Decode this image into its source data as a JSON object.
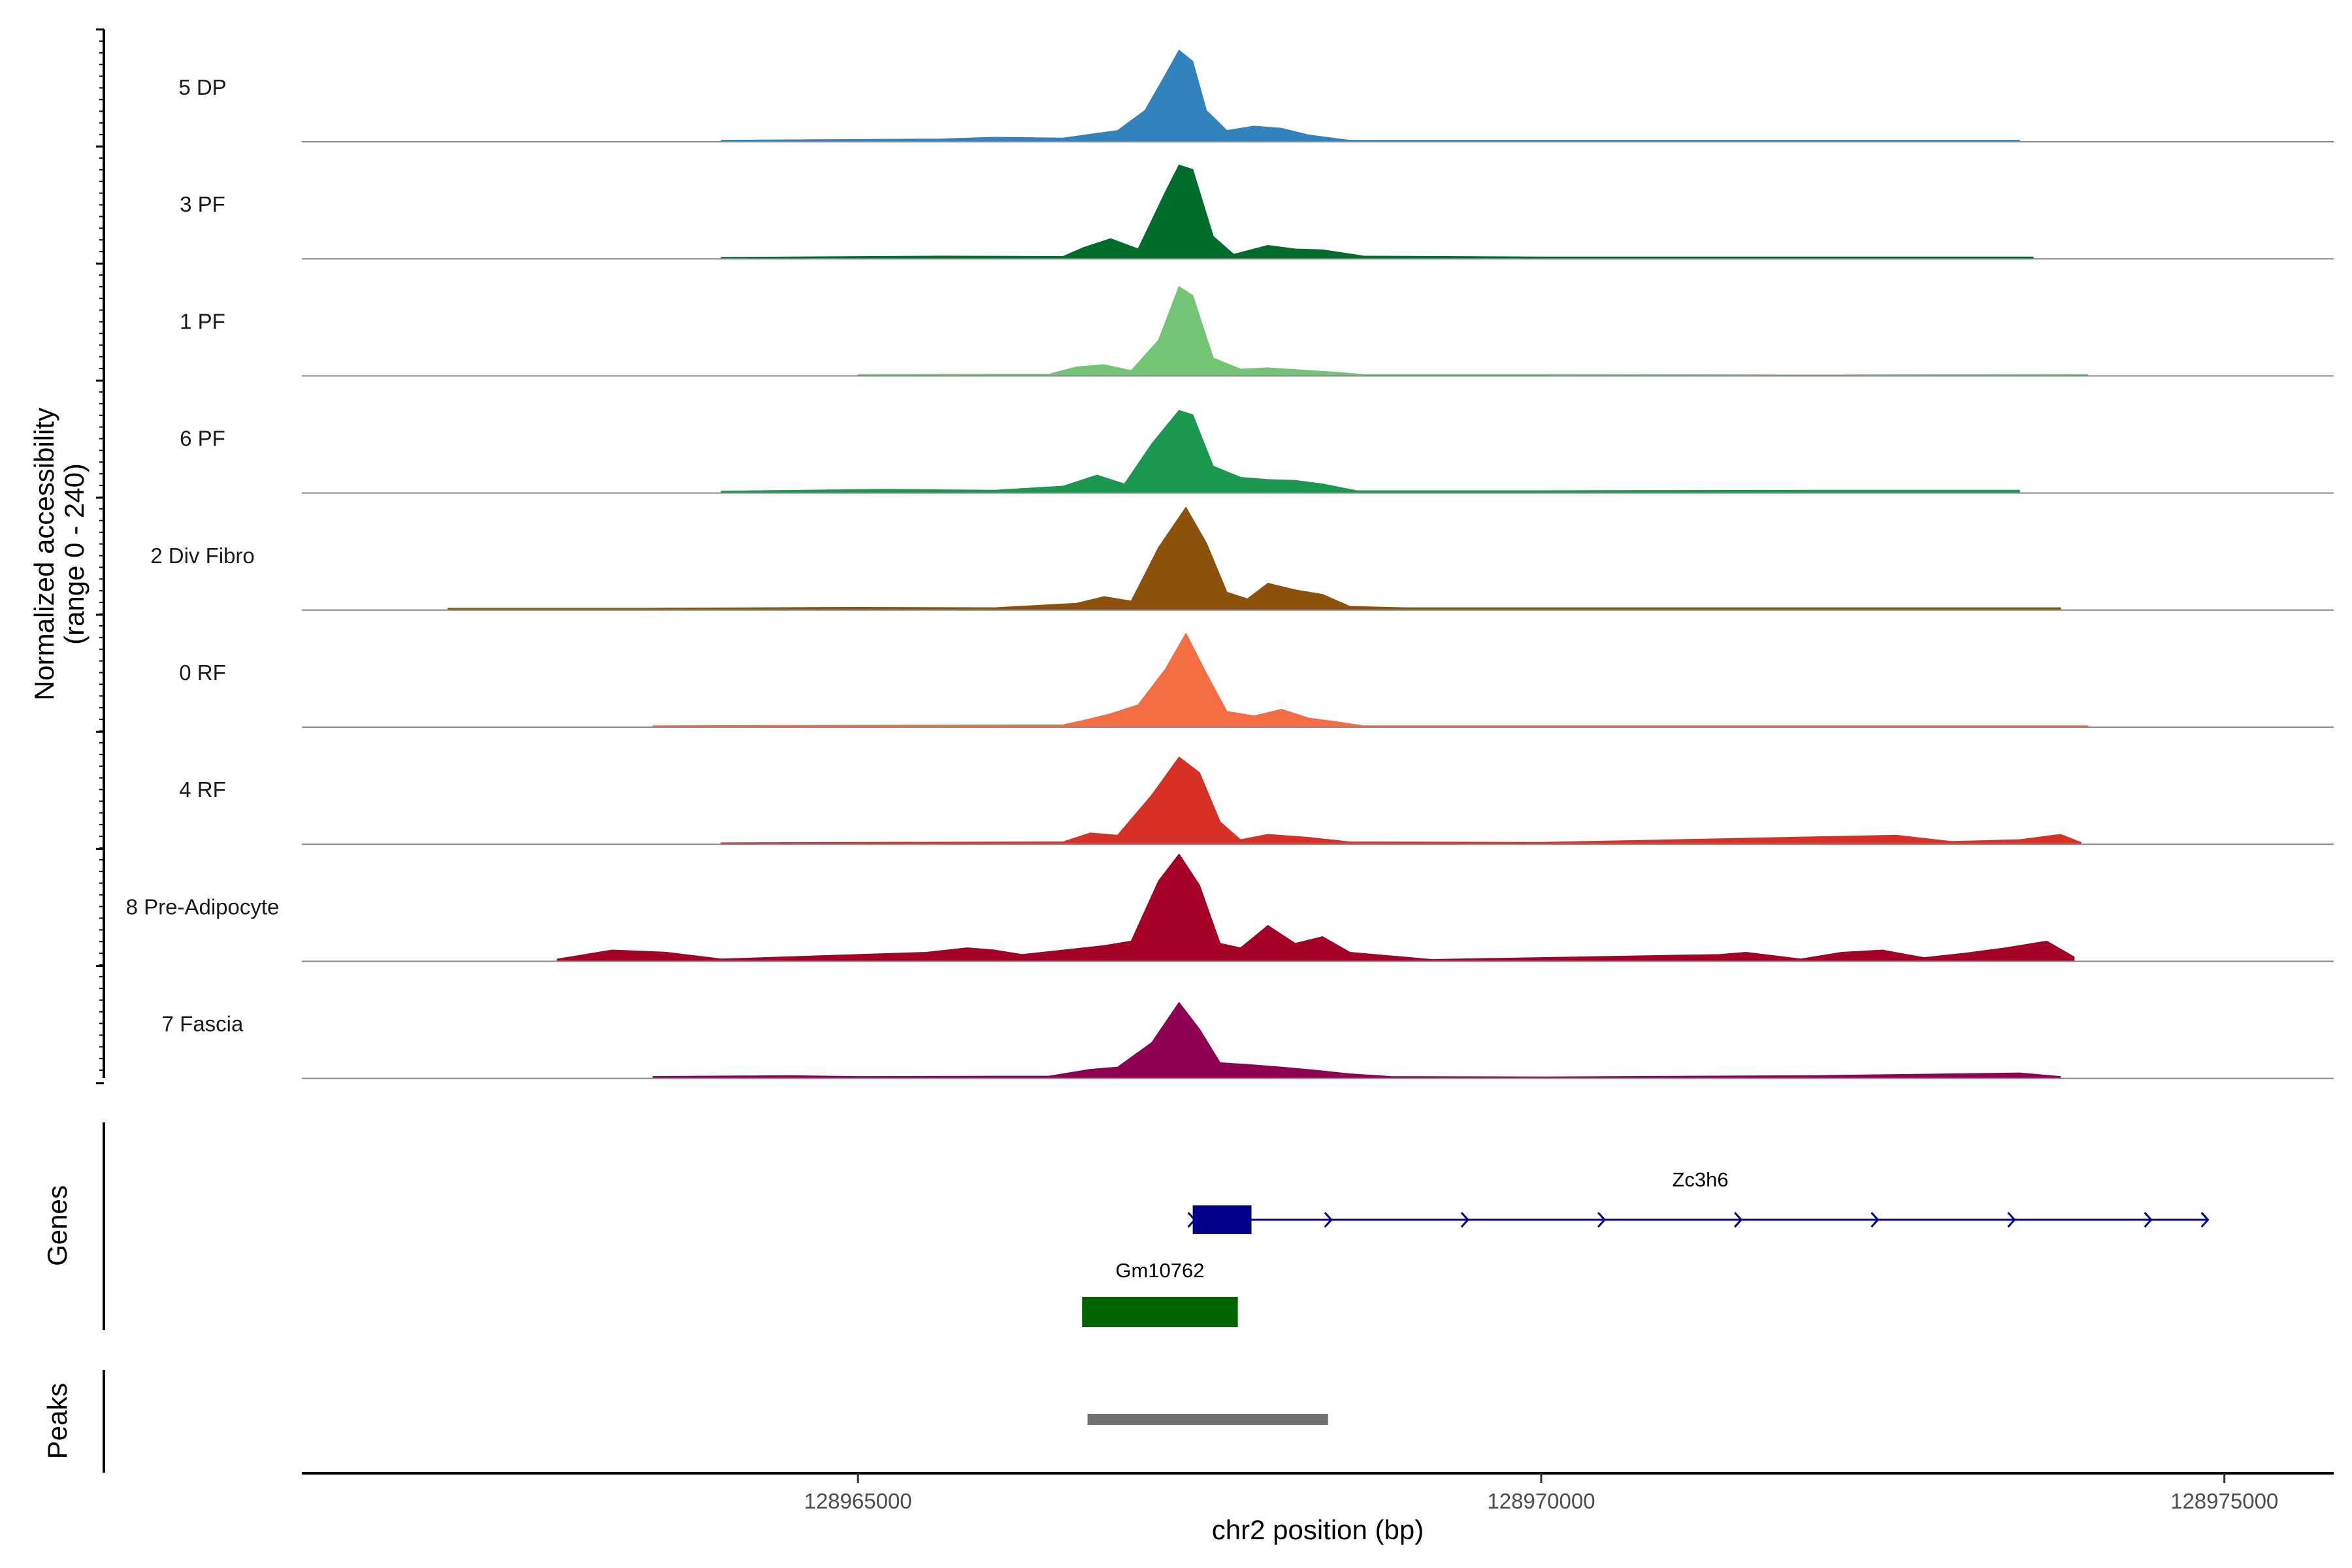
{
  "chart_data": {
    "type": "area",
    "title": "",
    "ylabel": "Normalized accessibility",
    "ylabel_range": "(range 0 - 240)",
    "xlabel": "chr2 position (bp)",
    "xlim": [
      128960930,
      128975800
    ],
    "ylim": [
      0,
      240
    ],
    "x_ticks": [
      {
        "value": 128965000,
        "label": "128965000"
      },
      {
        "value": 128970000,
        "label": "128970000"
      },
      {
        "value": 128975000,
        "label": "128975000"
      }
    ],
    "tracks": [
      {
        "name": "5 DP",
        "color": "#3182BD",
        "signal": [
          [
            128964000,
            3
          ],
          [
            128965000,
            5
          ],
          [
            128965600,
            6
          ],
          [
            128966000,
            10
          ],
          [
            128966500,
            8
          ],
          [
            128966900,
            25
          ],
          [
            128967100,
            70
          ],
          [
            128967250,
            150
          ],
          [
            128967350,
            205
          ],
          [
            128967450,
            180
          ],
          [
            128967550,
            70
          ],
          [
            128967700,
            25
          ],
          [
            128967900,
            35
          ],
          [
            128968100,
            30
          ],
          [
            128968300,
            15
          ],
          [
            128968600,
            3
          ],
          [
            128970000,
            3
          ],
          [
            128972000,
            3
          ],
          [
            128973500,
            3
          ]
        ]
      },
      {
        "name": "3 PF",
        "color": "#006D2C",
        "signal": [
          [
            128964000,
            3
          ],
          [
            128965600,
            6
          ],
          [
            128966500,
            5
          ],
          [
            128966650,
            25
          ],
          [
            128966850,
            45
          ],
          [
            128967050,
            22
          ],
          [
            128967250,
            150
          ],
          [
            128967350,
            210
          ],
          [
            128967450,
            200
          ],
          [
            128967600,
            50
          ],
          [
            128967750,
            10
          ],
          [
            128968000,
            30
          ],
          [
            128968200,
            22
          ],
          [
            128968400,
            20
          ],
          [
            128968700,
            6
          ],
          [
            128970000,
            4
          ],
          [
            128972000,
            4
          ],
          [
            128973600,
            4
          ]
        ]
      },
      {
        "name": "1 PF",
        "color": "#74C476",
        "signal": [
          [
            128965000,
            3
          ],
          [
            128966400,
            4
          ],
          [
            128966600,
            20
          ],
          [
            128966800,
            25
          ],
          [
            128967000,
            12
          ],
          [
            128967200,
            80
          ],
          [
            128967350,
            200
          ],
          [
            128967450,
            180
          ],
          [
            128967600,
            40
          ],
          [
            128967800,
            15
          ],
          [
            128968000,
            18
          ],
          [
            128968300,
            12
          ],
          [
            128968500,
            8
          ],
          [
            128968700,
            3
          ],
          [
            128970000,
            3
          ],
          [
            128972000,
            2
          ],
          [
            128974000,
            3
          ]
        ]
      },
      {
        "name": "6 PF",
        "color": "#1A9850",
        "signal": [
          [
            128964000,
            4
          ],
          [
            128965200,
            8
          ],
          [
            128966000,
            6
          ],
          [
            128966500,
            15
          ],
          [
            128966750,
            40
          ],
          [
            128966950,
            20
          ],
          [
            128967150,
            110
          ],
          [
            128967350,
            185
          ],
          [
            128967450,
            175
          ],
          [
            128967600,
            60
          ],
          [
            128967800,
            35
          ],
          [
            128968000,
            30
          ],
          [
            128968200,
            28
          ],
          [
            128968400,
            20
          ],
          [
            128968650,
            5
          ],
          [
            128970000,
            5
          ],
          [
            128972000,
            6
          ],
          [
            128973500,
            6
          ]
        ]
      },
      {
        "name": "2 Div Fibro",
        "color": "#8C510A",
        "signal": [
          [
            128962000,
            4
          ],
          [
            128963500,
            4
          ],
          [
            128965000,
            6
          ],
          [
            128966000,
            5
          ],
          [
            128966600,
            15
          ],
          [
            128966800,
            30
          ],
          [
            128967000,
            20
          ],
          [
            128967200,
            140
          ],
          [
            128967400,
            230
          ],
          [
            128967550,
            150
          ],
          [
            128967700,
            40
          ],
          [
            128967850,
            25
          ],
          [
            128968000,
            60
          ],
          [
            128968200,
            45
          ],
          [
            128968400,
            35
          ],
          [
            128968600,
            8
          ],
          [
            128969000,
            5
          ],
          [
            128970000,
            5
          ],
          [
            128972000,
            5
          ],
          [
            128973800,
            5
          ]
        ]
      },
      {
        "name": "0 RF",
        "color": "#F46D43",
        "signal": [
          [
            128963500,
            3
          ],
          [
            128965000,
            4
          ],
          [
            128966500,
            5
          ],
          [
            128966650,
            15
          ],
          [
            128966850,
            30
          ],
          [
            128967050,
            50
          ],
          [
            128967250,
            130
          ],
          [
            128967400,
            210
          ],
          [
            128967550,
            120
          ],
          [
            128967700,
            35
          ],
          [
            128967900,
            25
          ],
          [
            128968100,
            40
          ],
          [
            128968300,
            20
          ],
          [
            128968500,
            12
          ],
          [
            128968700,
            3
          ],
          [
            128970000,
            3
          ],
          [
            128972000,
            3
          ],
          [
            128974000,
            3
          ]
        ]
      },
      {
        "name": "4 RF",
        "color": "#D73027",
        "signal": [
          [
            128964000,
            3
          ],
          [
            128965000,
            4
          ],
          [
            128966500,
            5
          ],
          [
            128966700,
            25
          ],
          [
            128966900,
            20
          ],
          [
            128967150,
            110
          ],
          [
            128967350,
            195
          ],
          [
            128967500,
            160
          ],
          [
            128967650,
            50
          ],
          [
            128967800,
            10
          ],
          [
            128968000,
            22
          ],
          [
            128968300,
            15
          ],
          [
            128968600,
            5
          ],
          [
            128970000,
            4
          ],
          [
            128972600,
            20
          ],
          [
            128973000,
            6
          ],
          [
            128973500,
            10
          ],
          [
            128973800,
            22
          ],
          [
            128973950,
            4
          ]
        ]
      },
      {
        "name": "8 Pre-Adipocyte",
        "color": "#A50026",
        "signal": [
          [
            128962800,
            5
          ],
          [
            128963200,
            25
          ],
          [
            128963600,
            20
          ],
          [
            128964000,
            5
          ],
          [
            128965500,
            20
          ],
          [
            128965800,
            30
          ],
          [
            128966000,
            25
          ],
          [
            128966200,
            15
          ],
          [
            128966800,
            35
          ],
          [
            128967000,
            45
          ],
          [
            128967200,
            180
          ],
          [
            128967350,
            240
          ],
          [
            128967500,
            170
          ],
          [
            128967650,
            40
          ],
          [
            128967800,
            30
          ],
          [
            128968000,
            80
          ],
          [
            128968200,
            40
          ],
          [
            128968400,
            55
          ],
          [
            128968600,
            20
          ],
          [
            128968900,
            12
          ],
          [
            128969200,
            4
          ],
          [
            128971300,
            15
          ],
          [
            128971500,
            20
          ],
          [
            128971900,
            5
          ],
          [
            128972200,
            20
          ],
          [
            128972500,
            25
          ],
          [
            128972800,
            8
          ],
          [
            128973100,
            18
          ],
          [
            128973400,
            30
          ],
          [
            128973700,
            45
          ],
          [
            128973900,
            10
          ]
        ]
      },
      {
        "name": "7 Fascia",
        "color": "#8E0152",
        "signal": [
          [
            128963500,
            4
          ],
          [
            128964500,
            6
          ],
          [
            128965000,
            4
          ],
          [
            128966400,
            5
          ],
          [
            128966700,
            20
          ],
          [
            128966900,
            25
          ],
          [
            128967150,
            80
          ],
          [
            128967350,
            170
          ],
          [
            128967500,
            110
          ],
          [
            128967650,
            35
          ],
          [
            128967900,
            30
          ],
          [
            128968100,
            25
          ],
          [
            128968350,
            18
          ],
          [
            128968600,
            10
          ],
          [
            128968900,
            4
          ],
          [
            128970000,
            3
          ],
          [
            128972000,
            6
          ],
          [
            128973500,
            12
          ],
          [
            128973800,
            4
          ]
        ]
      }
    ],
    "genes": [
      {
        "name": "Zc3h6",
        "color": "#00008B",
        "strand": "+",
        "start": 128967450,
        "end": 128974880,
        "exon_start": 128967450,
        "exon_end": 128967880
      },
      {
        "name": "Gm10762",
        "color": "#006400",
        "strand": "+",
        "start": 128966640,
        "end": 128967780,
        "exon_start": 128966640,
        "exon_end": 128967780
      }
    ],
    "gene_panel_label": "Genes",
    "peaks": [
      {
        "start": 128966680,
        "end": 128968440,
        "color": "#707070"
      }
    ],
    "peak_panel_label": "Peaks"
  }
}
